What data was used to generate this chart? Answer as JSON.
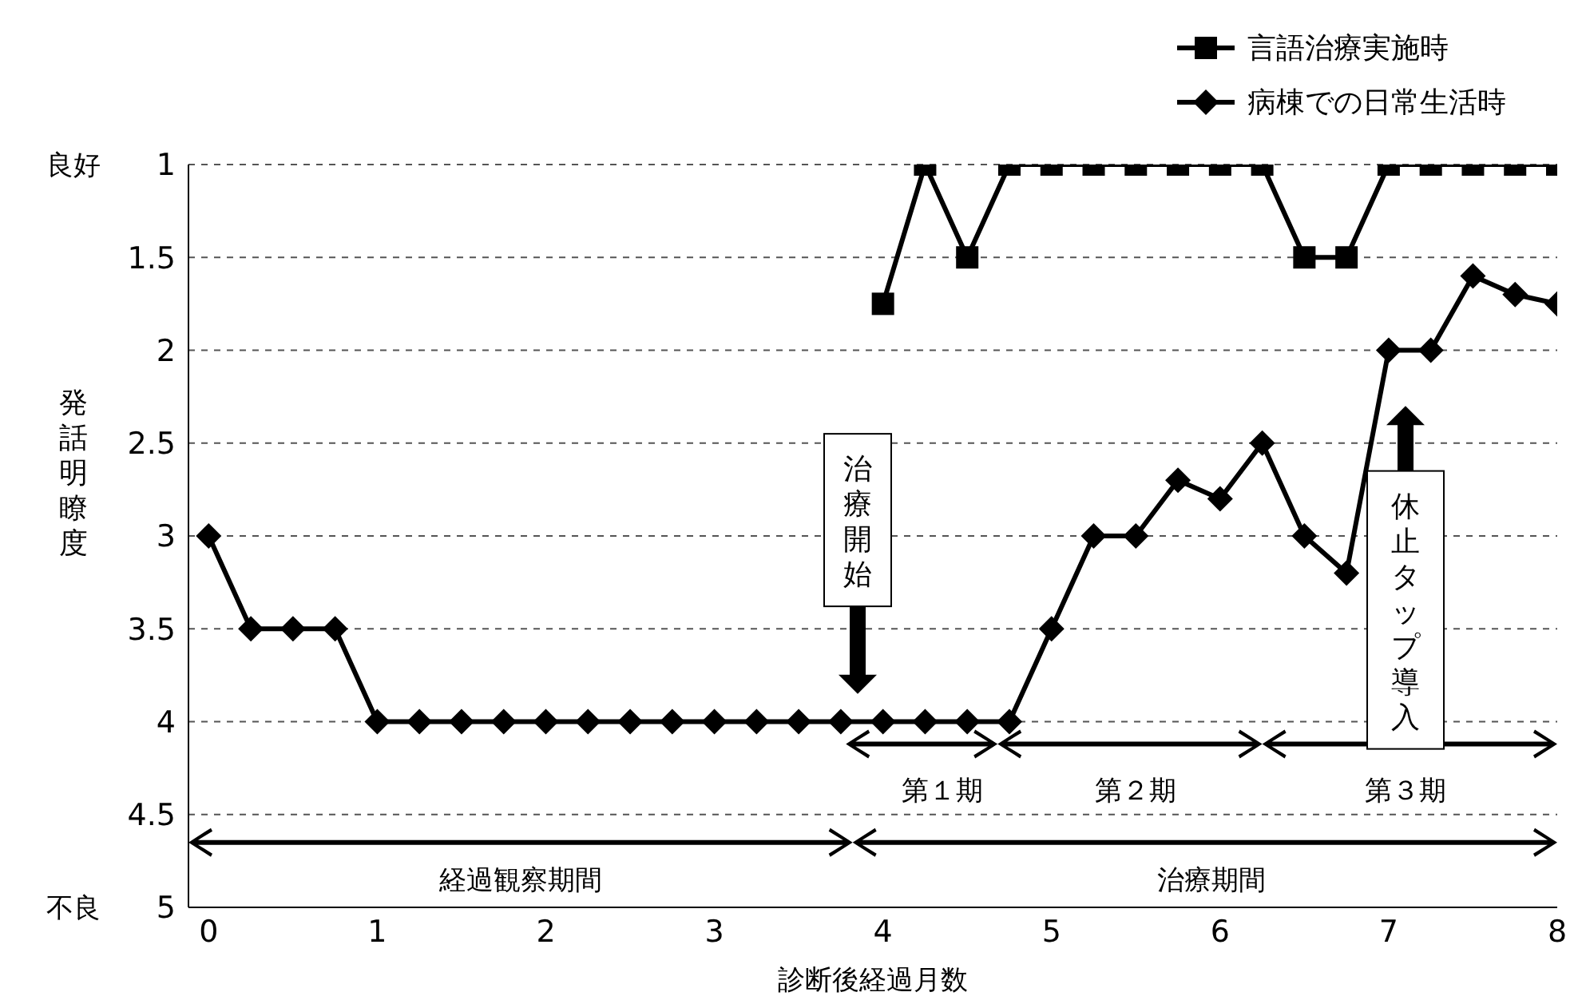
{
  "chart_data": {
    "type": "line",
    "xlabel": "診断後経過月数",
    "ylabel": "発話明瞭度",
    "xlim": [
      -0.12,
      8
    ],
    "xticks": [
      0,
      1,
      2,
      3,
      4,
      5,
      6,
      7,
      8
    ],
    "ylim": [
      5,
      1
    ],
    "yticks": [
      1,
      1.5,
      2,
      2.5,
      3,
      3.5,
      4,
      4.5,
      5
    ],
    "grid": "y",
    "legend": "top right",
    "line_style": "solid",
    "series": [
      {
        "name": "言語治療実施時",
        "color": "#000000",
        "marker": "square",
        "x": [
          4,
          4.25,
          4.5,
          4.75,
          5,
          5.25,
          5.5,
          5.75,
          6,
          6.25,
          6.5,
          6.75,
          7,
          7.25,
          7.5,
          7.75,
          8
        ],
        "values": [
          1.75,
          1,
          1.5,
          1,
          1,
          1,
          1,
          1,
          1,
          1,
          1.5,
          1.5,
          1,
          1,
          1,
          1,
          1
        ]
      },
      {
        "name": "病棟での日常生活時",
        "color": "#000000",
        "marker": "diamond",
        "x": [
          0,
          0.25,
          0.5,
          0.75,
          1,
          1.25,
          1.5,
          1.75,
          2,
          2.25,
          2.5,
          2.75,
          3,
          3.25,
          3.5,
          3.75,
          4,
          4.25,
          4.5,
          4.75,
          5,
          5.25,
          5.5,
          5.75,
          6,
          6.25,
          6.5,
          6.75,
          7,
          7.25,
          7.5,
          7.75,
          8
        ],
        "values": [
          3,
          3.5,
          3.5,
          3.5,
          4,
          4,
          4,
          4,
          4,
          4,
          4,
          4,
          4,
          4,
          4,
          4,
          4,
          4,
          4,
          4,
          3.5,
          3,
          3,
          2.7,
          2.8,
          2.5,
          3,
          3.2,
          2,
          2,
          1.6,
          1.7,
          1.75
        ]
      }
    ],
    "annotations": [
      "良好",
      "不良",
      "治療開始",
      "休止タップ導入",
      "第１期",
      "第２期",
      "第３期",
      "経過観察期間",
      "治療期間"
    ]
  }
}
